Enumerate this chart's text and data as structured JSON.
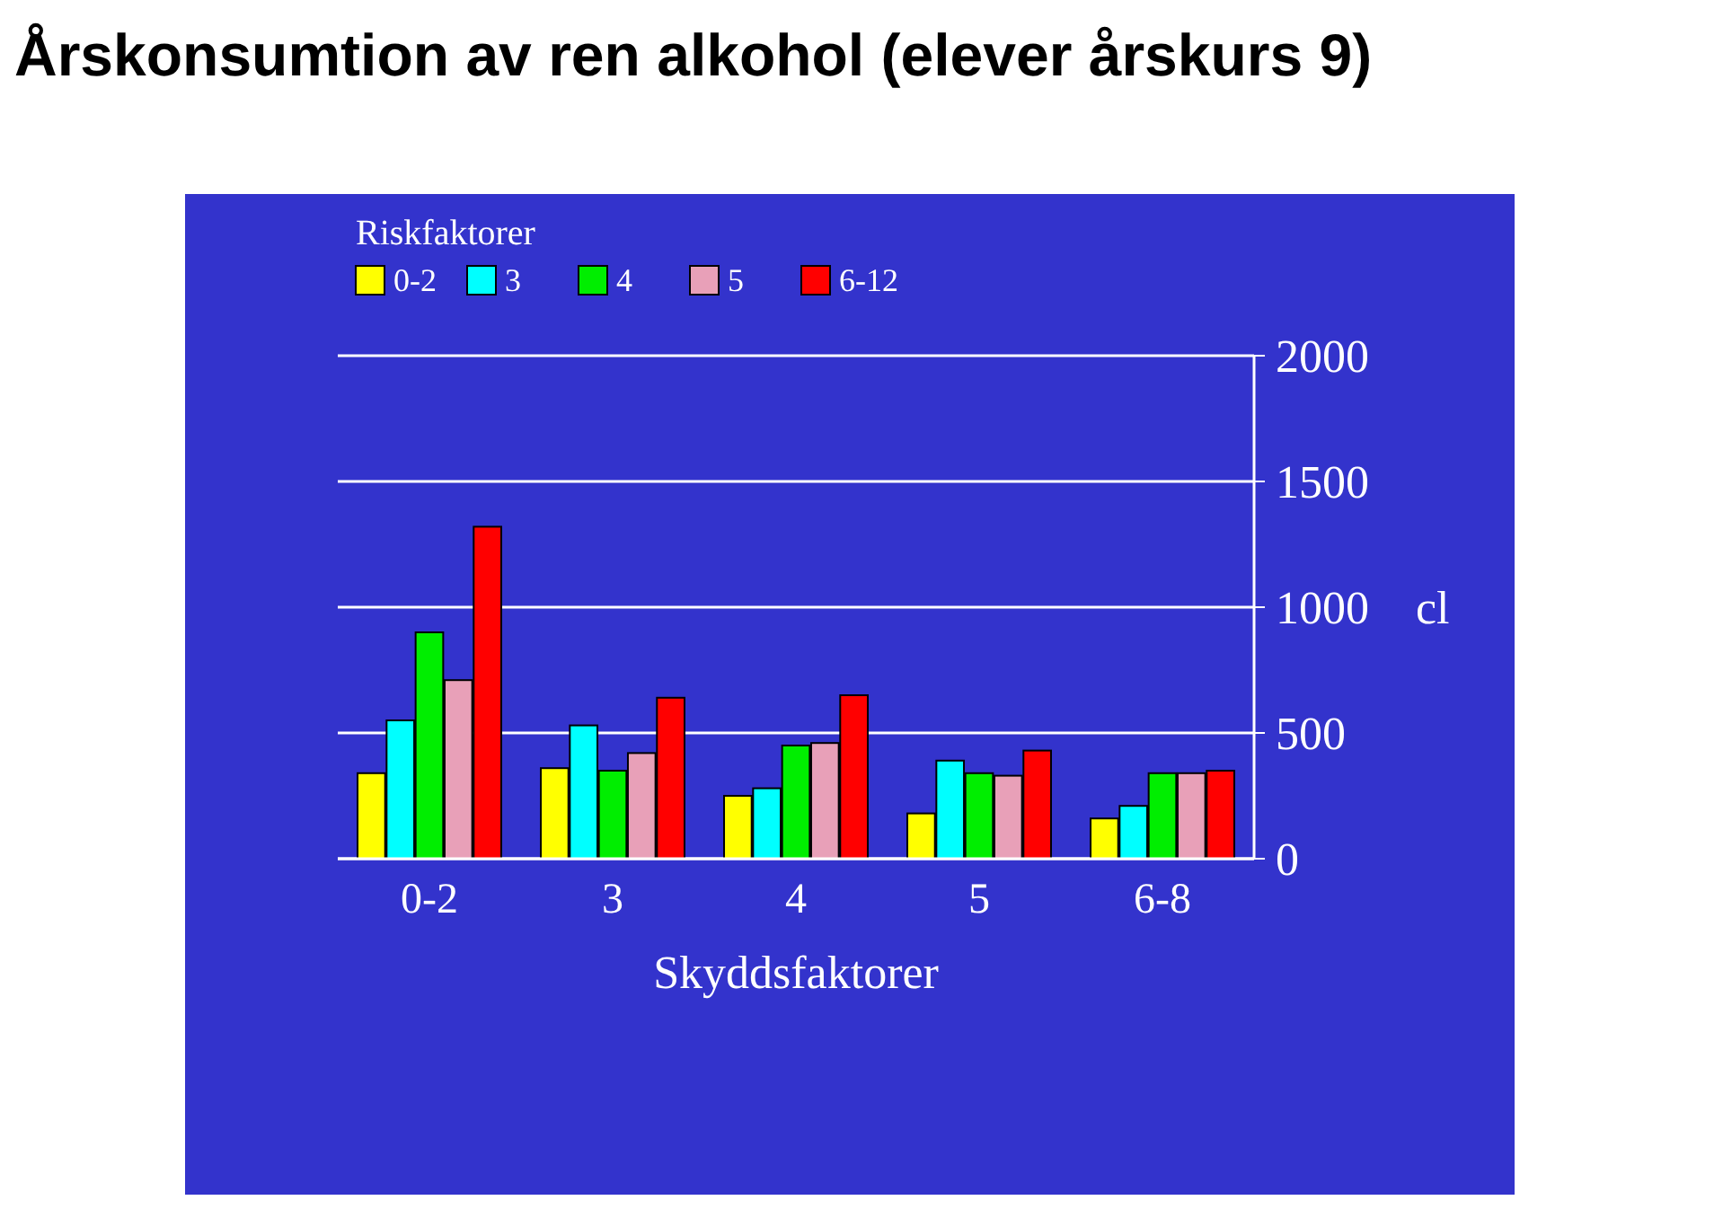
{
  "chart_data": {
    "type": "bar",
    "title": "Årskonsumtion av ren alkohol (elever årskurs 9)",
    "categories": [
      "0-2",
      "3",
      "4",
      "5",
      "6-8"
    ],
    "xlabel": "Skyddsfaktorer",
    "ylabel": "cl",
    "legend_title": "Riskfaktorer",
    "series": [
      {
        "name": "0-2",
        "color": "#ffff00",
        "values": [
          340,
          360,
          250,
          180,
          160
        ]
      },
      {
        "name": "3",
        "color": "#00ffff",
        "values": [
          550,
          530,
          280,
          390,
          210
        ]
      },
      {
        "name": "4",
        "color": "#00ee00",
        "values": [
          900,
          350,
          450,
          340,
          340
        ]
      },
      {
        "name": "5",
        "color": "#e8a0b8",
        "values": [
          710,
          420,
          460,
          330,
          340
        ]
      },
      {
        "name": "6-12",
        "color": "#ff0000",
        "values": [
          1320,
          640,
          650,
          430,
          350
        ]
      }
    ],
    "ylim": [
      0,
      2000
    ],
    "yticks": [
      0,
      500,
      1000,
      1500,
      2000
    ],
    "grid": "y",
    "legend": "top left"
  }
}
